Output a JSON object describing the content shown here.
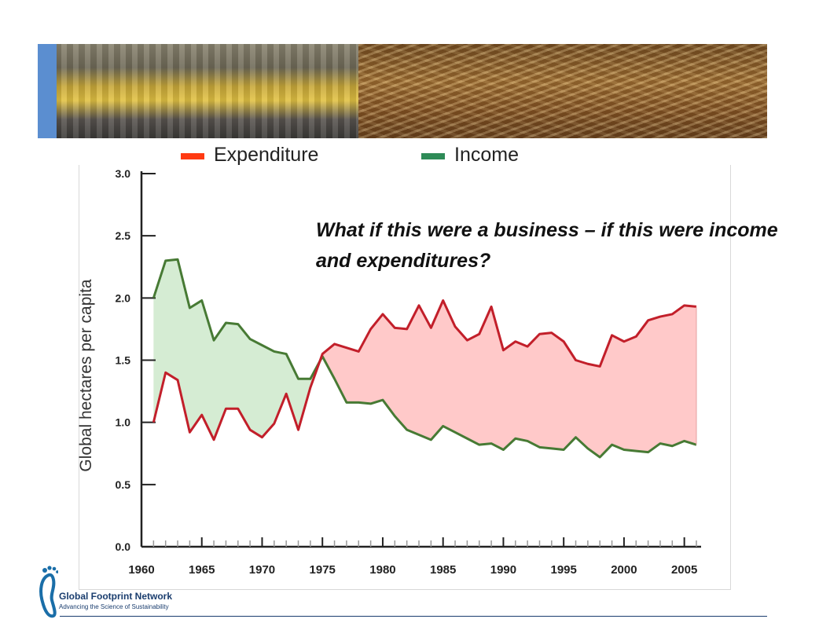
{
  "legend": {
    "items": [
      {
        "label": "Expenditure",
        "color": "#ff3a12"
      },
      {
        "label": "Income",
        "color": "#2e8b57"
      }
    ]
  },
  "question": "What if this were a business – if this were income and expenditures?",
  "logo": {
    "name": "Global Footprint Network",
    "tagline": "Advancing the Science of Sustainability",
    "icon": "footprint-icon"
  },
  "colors": {
    "expenditure_line": "#c21f2a",
    "income_line": "#477a34",
    "deficit_fill": "#ffc9c9",
    "reserve_fill": "#d5ecd3"
  },
  "chart_data": {
    "type": "line",
    "title": "",
    "xlabel": "",
    "ylabel": "Global hectares per capita",
    "xlim": [
      1960,
      2006
    ],
    "ylim": [
      0,
      3.0
    ],
    "yticks": [
      "0.0",
      "0.5",
      "1.0",
      "1.5",
      "2.0",
      "2.5",
      "3.0"
    ],
    "xticks": [
      "1960",
      "1965",
      "1970",
      "1975",
      "1980",
      "1985",
      "1990",
      "1995",
      "2000",
      "2005"
    ],
    "x": [
      1961,
      1962,
      1963,
      1964,
      1965,
      1966,
      1967,
      1968,
      1969,
      1970,
      1971,
      1972,
      1973,
      1974,
      1975,
      1976,
      1977,
      1978,
      1979,
      1980,
      1981,
      1982,
      1983,
      1984,
      1985,
      1986,
      1987,
      1988,
      1989,
      1990,
      1991,
      1992,
      1993,
      1994,
      1995,
      1996,
      1997,
      1998,
      1999,
      2000,
      2001,
      2002,
      2003,
      2004,
      2005,
      2006
    ],
    "series": [
      {
        "name": "Expenditure",
        "values": [
          1.0,
          1.4,
          1.34,
          0.92,
          1.06,
          0.86,
          1.11,
          1.11,
          0.94,
          0.88,
          0.99,
          1.23,
          0.94,
          1.28,
          1.55,
          1.63,
          1.6,
          1.57,
          1.75,
          1.87,
          1.76,
          1.75,
          1.94,
          1.76,
          1.98,
          1.77,
          1.66,
          1.71,
          1.93,
          1.58,
          1.65,
          1.61,
          1.71,
          1.72,
          1.65,
          1.5,
          1.47,
          1.45,
          1.7,
          1.65,
          1.69,
          1.82,
          1.85,
          1.87,
          1.94,
          1.93
        ]
      },
      {
        "name": "Income",
        "values": [
          2.0,
          2.3,
          2.31,
          1.92,
          1.98,
          1.66,
          1.8,
          1.79,
          1.67,
          1.62,
          1.57,
          1.55,
          1.35,
          1.35,
          1.53,
          1.35,
          1.16,
          1.16,
          1.15,
          1.18,
          1.05,
          0.94,
          0.9,
          0.86,
          0.97,
          0.92,
          0.87,
          0.82,
          0.83,
          0.78,
          0.87,
          0.85,
          0.8,
          0.79,
          0.78,
          0.88,
          0.79,
          0.72,
          0.82,
          0.78,
          0.77,
          0.76,
          0.83,
          0.81,
          0.85,
          0.82
        ]
      }
    ],
    "grid": false,
    "legend": "top"
  }
}
